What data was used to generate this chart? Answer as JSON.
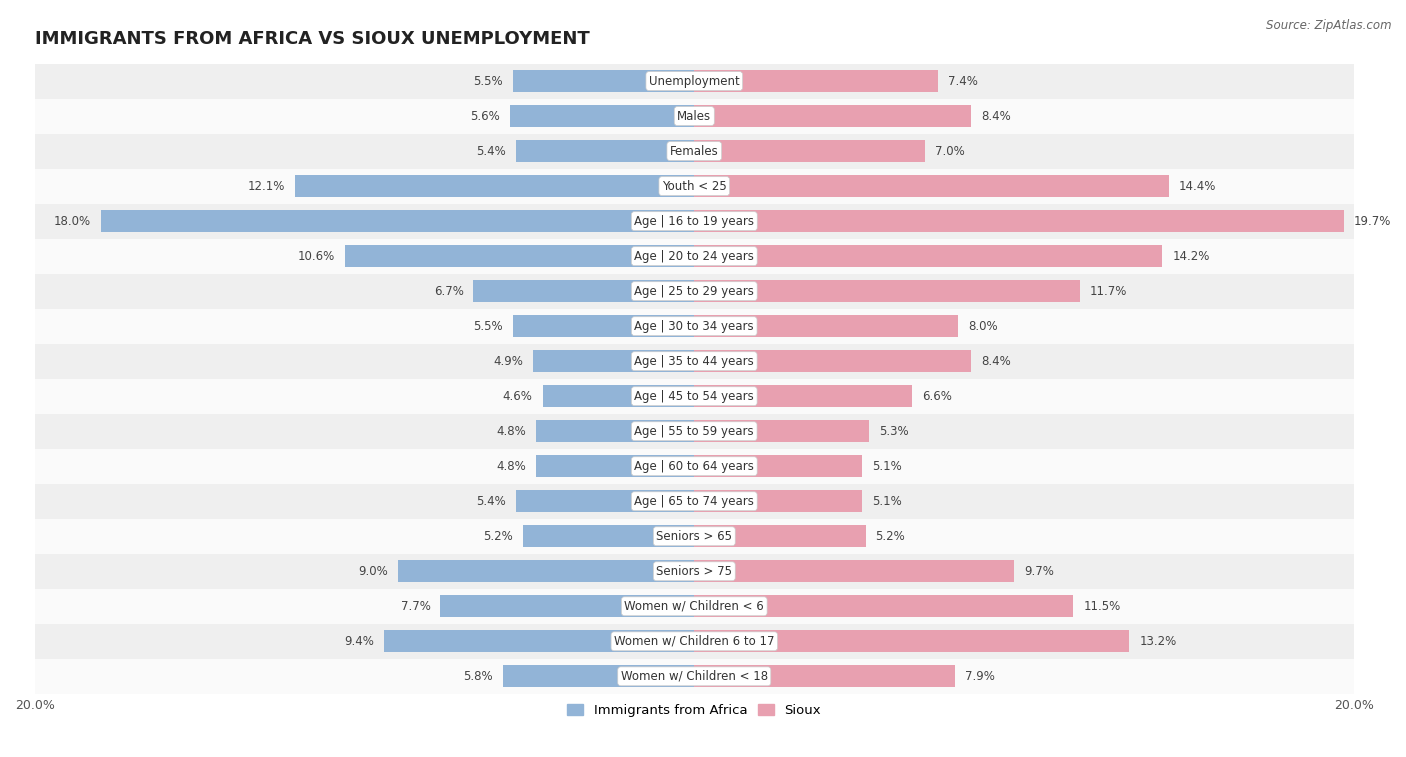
{
  "title": "IMMIGRANTS FROM AFRICA VS SIOUX UNEMPLOYMENT",
  "source_text": "Source: ZipAtlas.com",
  "categories": [
    "Unemployment",
    "Males",
    "Females",
    "Youth < 25",
    "Age | 16 to 19 years",
    "Age | 20 to 24 years",
    "Age | 25 to 29 years",
    "Age | 30 to 34 years",
    "Age | 35 to 44 years",
    "Age | 45 to 54 years",
    "Age | 55 to 59 years",
    "Age | 60 to 64 years",
    "Age | 65 to 74 years",
    "Seniors > 65",
    "Seniors > 75",
    "Women w/ Children < 6",
    "Women w/ Children 6 to 17",
    "Women w/ Children < 18"
  ],
  "left_values": [
    5.5,
    5.6,
    5.4,
    12.1,
    18.0,
    10.6,
    6.7,
    5.5,
    4.9,
    4.6,
    4.8,
    4.8,
    5.4,
    5.2,
    9.0,
    7.7,
    9.4,
    5.8
  ],
  "right_values": [
    7.4,
    8.4,
    7.0,
    14.4,
    19.7,
    14.2,
    11.7,
    8.0,
    8.4,
    6.6,
    5.3,
    5.1,
    5.1,
    5.2,
    9.7,
    11.5,
    13.2,
    7.9
  ],
  "left_color": "#92b4d7",
  "right_color": "#e8a0b0",
  "row_bg_odd": "#efefef",
  "row_bg_even": "#fafafa",
  "axis_limit": 20.0,
  "bar_height": 0.62,
  "title_fontsize": 13,
  "category_fontsize": 8.5,
  "value_fontsize": 8.5,
  "legend_label_left": "Immigrants from Africa",
  "legend_label_right": "Sioux",
  "background_color": "#ffffff"
}
